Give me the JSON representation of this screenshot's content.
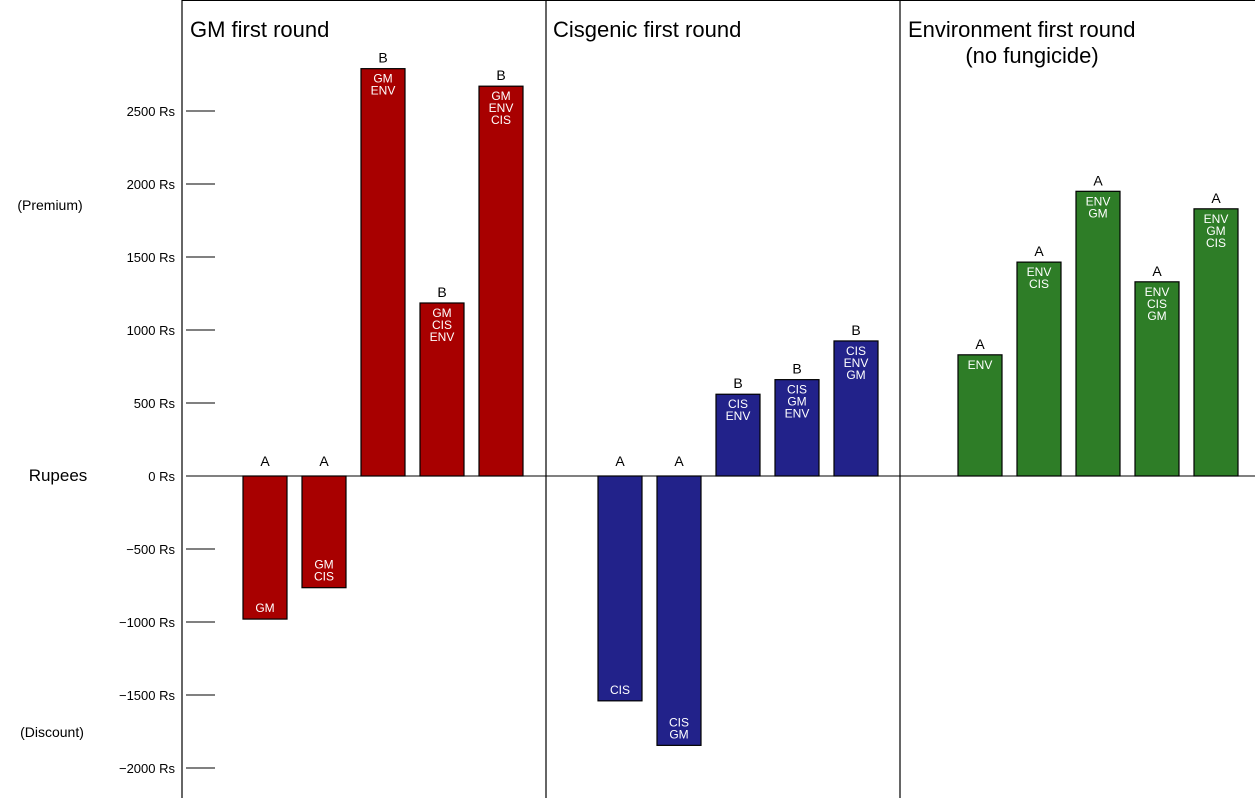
{
  "chart_data": {
    "type": "bar",
    "ylabel": "Rupees",
    "side_labels": {
      "top": "(Premium)",
      "bottom": "(Discount)"
    },
    "ylim": [
      -2150,
      2900
    ],
    "yticks": [
      {
        "value": 2500,
        "label": "2500 Rs"
      },
      {
        "value": 2000,
        "label": "2000 Rs"
      },
      {
        "value": 1500,
        "label": "1500 Rs"
      },
      {
        "value": 1000,
        "label": "1000 Rs"
      },
      {
        "value": 500,
        "label": "500 Rs"
      },
      {
        "value": 0,
        "label": "0 Rs"
      },
      {
        "value": -500,
        "label": "−500 Rs"
      },
      {
        "value": -1000,
        "label": "−1000 Rs"
      },
      {
        "value": -1500,
        "label": "−1500 Rs"
      },
      {
        "value": -2000,
        "label": "−2000 Rs"
      }
    ],
    "grid": false,
    "panels": [
      {
        "title": [
          "GM first round"
        ],
        "color": "#a80000",
        "bars": [
          {
            "value": -980,
            "letter": "A",
            "lines": [
              "GM"
            ]
          },
          {
            "value": -765,
            "letter": "A",
            "lines": [
              "GM",
              "CIS"
            ]
          },
          {
            "value": 2790,
            "letter": "B",
            "lines": [
              "GM",
              "ENV"
            ]
          },
          {
            "value": 1185,
            "letter": "B",
            "lines": [
              "GM",
              "CIS",
              "ENV"
            ]
          },
          {
            "value": 2670,
            "letter": "B",
            "lines": [
              "GM",
              "ENV",
              "CIS"
            ]
          }
        ]
      },
      {
        "title": [
          "Cisgenic first round"
        ],
        "color": "#22228a",
        "bars": [
          {
            "value": -1540,
            "letter": "A",
            "lines": [
              "CIS"
            ]
          },
          {
            "value": -1845,
            "letter": "A",
            "lines": [
              "CIS",
              "GM"
            ]
          },
          {
            "value": 560,
            "letter": "B",
            "lines": [
              "CIS",
              "ENV"
            ]
          },
          {
            "value": 660,
            "letter": "B",
            "lines": [
              "CIS",
              "GM",
              "ENV"
            ]
          },
          {
            "value": 925,
            "letter": "B",
            "lines": [
              "CIS",
              "ENV",
              "GM"
            ]
          }
        ]
      },
      {
        "title": [
          "Environment first round",
          "(no fungicide)"
        ],
        "color": "#2e7d27",
        "bars": [
          {
            "value": 830,
            "letter": "A",
            "lines": [
              "ENV"
            ]
          },
          {
            "value": 1465,
            "letter": "A",
            "lines": [
              "ENV",
              "CIS"
            ]
          },
          {
            "value": 1950,
            "letter": "A",
            "lines": [
              "ENV",
              "GM"
            ]
          },
          {
            "value": 1330,
            "letter": "A",
            "lines": [
              "ENV",
              "CIS",
              "GM"
            ]
          },
          {
            "value": 1830,
            "letter": "A",
            "lines": [
              "ENV",
              "GM",
              "CIS"
            ]
          }
        ]
      }
    ]
  }
}
